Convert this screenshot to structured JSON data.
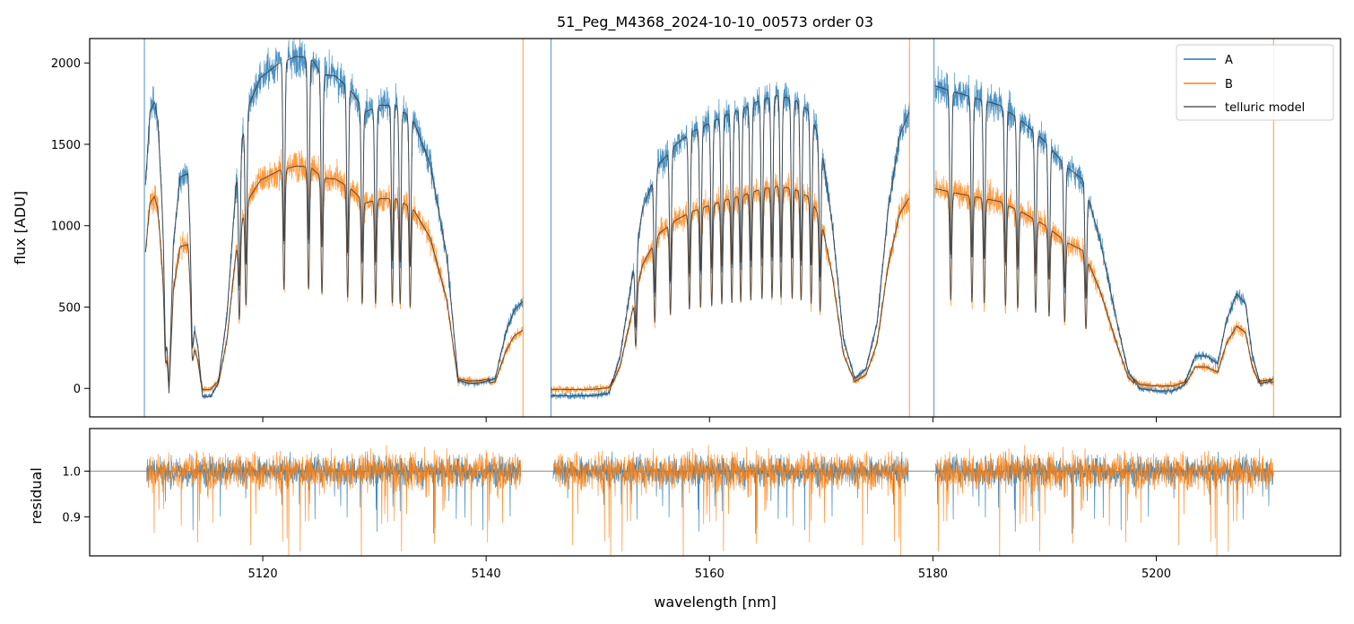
{
  "chart_data": [
    {
      "type": "line",
      "title": "51_Peg_M4368_2024-10-10_00573  order 03",
      "ylabel": "flux [ADU]",
      "xlim": [
        5104.5,
        5216.5
      ],
      "ylim": [
        -175,
        2150
      ],
      "yticks": [
        "0",
        "500",
        "1000",
        "1500",
        "2000"
      ],
      "ytick_values": [
        0,
        500,
        1000,
        1500,
        2000
      ],
      "legend_position": "upper right",
      "legend": [
        "A",
        "B",
        "telluric model"
      ],
      "colors": {
        "A": "#1f77b4",
        "B": "#ff7f0e",
        "model": "#333333"
      },
      "segments": [
        {
          "x_range": [
            5109.5,
            5143.3
          ],
          "shape_points": [
            [
              5109.5,
              1250
            ],
            [
              5109.9,
              1700
            ],
            [
              5110.3,
              1760
            ],
            [
              5110.6,
              1650
            ],
            [
              5111,
              1100
            ],
            [
              5111.6,
              -30
            ],
            [
              5112,
              900
            ],
            [
              5112.6,
              1300
            ],
            [
              5113.3,
              1320
            ],
            [
              5113.8,
              400
            ],
            [
              5114.2,
              250
            ],
            [
              5114.6,
              -50
            ],
            [
              5115.3,
              -50
            ],
            [
              5116,
              30
            ],
            [
              5116.8,
              450
            ],
            [
              5117.6,
              1250
            ],
            [
              5118.5,
              1700
            ],
            [
              5119.8,
              1910
            ],
            [
              5121.5,
              2000
            ],
            [
              5123,
              2040
            ],
            [
              5124.3,
              2030
            ],
            [
              5125.3,
              1930
            ],
            [
              5126.5,
              1920
            ],
            [
              5127.8,
              1840
            ],
            [
              5129.2,
              1700
            ],
            [
              5130.5,
              1740
            ],
            [
              5132,
              1740
            ],
            [
              5133.5,
              1640
            ],
            [
              5135,
              1380
            ],
            [
              5136.5,
              800
            ],
            [
              5137.5,
              50
            ],
            [
              5138.5,
              30
            ],
            [
              5139.5,
              35
            ],
            [
              5140.8,
              60
            ],
            [
              5141.8,
              350
            ],
            [
              5142.5,
              480
            ],
            [
              5143.2,
              530
            ]
          ],
          "b_ratio": 0.67
        },
        {
          "x_range": [
            5145.8,
            5177.9
          ],
          "shape_points": [
            [
              5145.8,
              -45
            ],
            [
              5149.5,
              -45
            ],
            [
              5151,
              -30
            ],
            [
              5152,
              200
            ],
            [
              5153,
              650
            ],
            [
              5154,
              1100
            ],
            [
              5155.5,
              1380
            ],
            [
              5157,
              1500
            ],
            [
              5158.5,
              1580
            ],
            [
              5160,
              1630
            ],
            [
              5161.5,
              1680
            ],
            [
              5163,
              1720
            ],
            [
              5164.5,
              1770
            ],
            [
              5166,
              1800
            ],
            [
              5167.5,
              1780
            ],
            [
              5169,
              1700
            ],
            [
              5170,
              1500
            ],
            [
              5171,
              1000
            ],
            [
              5172,
              300
            ],
            [
              5173,
              60
            ],
            [
              5174,
              120
            ],
            [
              5175,
              400
            ],
            [
              5176,
              1100
            ],
            [
              5177,
              1550
            ],
            [
              5177.9,
              1700
            ]
          ],
          "b_ratio": 0.69
        },
        {
          "x_range": [
            5180.2,
            5210.5
          ],
          "shape_points": [
            [
              5180.2,
              1860
            ],
            [
              5182,
              1820
            ],
            [
              5184,
              1780
            ],
            [
              5186,
              1740
            ],
            [
              5188,
              1640
            ],
            [
              5190,
              1520
            ],
            [
              5192,
              1360
            ],
            [
              5193.5,
              1280
            ],
            [
              5195,
              900
            ],
            [
              5196.5,
              400
            ],
            [
              5197.5,
              100
            ],
            [
              5198.5,
              0
            ],
            [
              5200,
              -15
            ],
            [
              5201.5,
              -15
            ],
            [
              5202.5,
              20
            ],
            [
              5203.5,
              200
            ],
            [
              5204.5,
              200
            ],
            [
              5205.5,
              150
            ],
            [
              5206.3,
              420
            ],
            [
              5207.2,
              580
            ],
            [
              5208,
              520
            ],
            [
              5208.6,
              200
            ],
            [
              5209.3,
              30
            ],
            [
              5210,
              40
            ],
            [
              5210.5,
              60
            ]
          ],
          "b_ratio": 0.66
        }
      ],
      "dip_positions": [
        5111.3,
        5113.7,
        5117.9,
        5118.5,
        5121.9,
        5124.1,
        5125.3,
        5127.6,
        5128.9,
        5130.1,
        5131.6,
        5132.3,
        5133.2,
        5153.4,
        5155.1,
        5156.5,
        5158.2,
        5159.2,
        5160.2,
        5161.1,
        5162.0,
        5162.8,
        5163.7,
        5164.7,
        5165.6,
        5166.4,
        5167.4,
        5168.2,
        5169.1,
        5169.9,
        5181.6,
        5183.5,
        5184.6,
        5186.5,
        5187.6,
        5189.2,
        5190.4,
        5191.8,
        5193.7
      ],
      "vline_positions": [
        5109.4,
        5143.3,
        5145.8,
        5177.9,
        5180.1,
        5210.5
      ]
    },
    {
      "type": "line",
      "xlabel": "wavelength [nm]",
      "ylabel": "residual",
      "xlim": [
        5104.5,
        5216.5
      ],
      "ylim": [
        0.815,
        1.093
      ],
      "xticks": [
        "5120",
        "5140",
        "5160",
        "5180",
        "5200"
      ],
      "xtick_values": [
        5120,
        5140,
        5160,
        5180,
        5200
      ],
      "yticks": [
        "0.9",
        "1.0"
      ],
      "ytick_values": [
        0.9,
        1.0
      ],
      "reference_line": 1.0,
      "segments": [
        [
          5109.6,
          5143.1
        ],
        [
          5146.0,
          5177.8
        ],
        [
          5180.2,
          5210.5
        ]
      ]
    }
  ]
}
